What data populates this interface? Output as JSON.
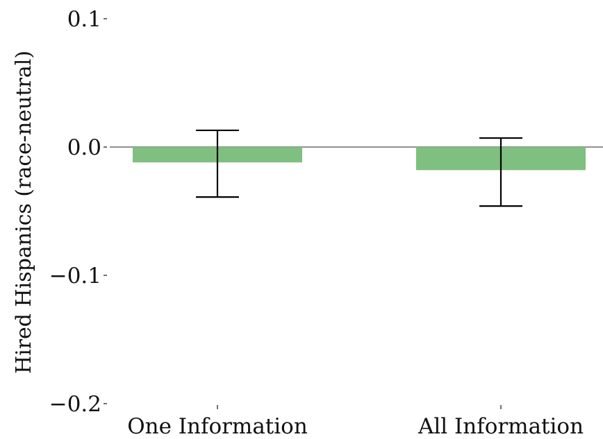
{
  "chart_data": {
    "type": "bar",
    "categories": [
      "One Information",
      "All Information"
    ],
    "values": [
      -0.012,
      -0.018
    ],
    "error_low": [
      -0.039,
      -0.046
    ],
    "error_high": [
      0.013,
      0.007
    ],
    "ylabel": "Hired Hispanics (race-neutral)",
    "xlabel": "",
    "ylim": [
      -0.2,
      0.1
    ],
    "yticks": [
      0.1,
      0.0,
      -0.1,
      -0.2
    ],
    "ytick_labels": [
      "0.1",
      "0.0",
      "−0.1",
      "−0.2"
    ],
    "zero_line": true,
    "grid": false,
    "bar_color": "#7fbf7f",
    "error_color": "#000000"
  }
}
